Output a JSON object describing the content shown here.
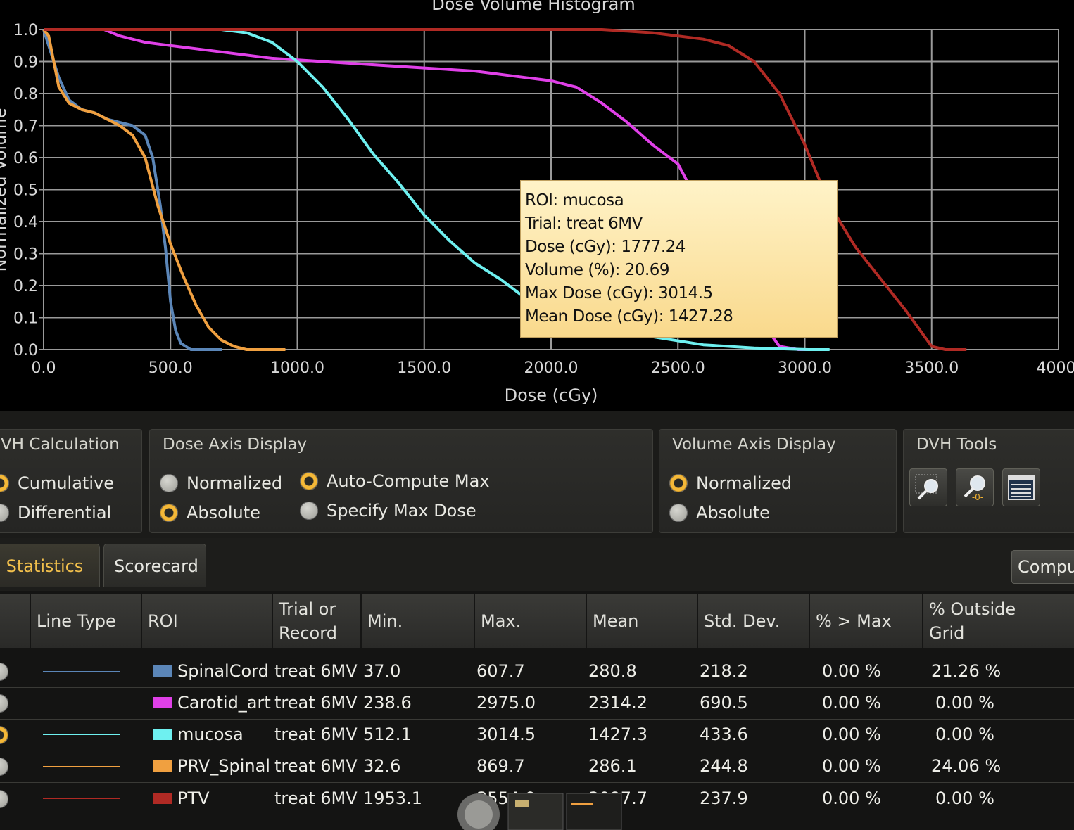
{
  "chart": {
    "title": "Dose Volume Histogram",
    "xlabel": "Dose (cGy)",
    "ylabel": "Normalized Volume",
    "xticks": [
      "0.0",
      "500.0",
      "1000.0",
      "1500.0",
      "2000.0",
      "2500.0",
      "3000.0",
      "3500.0",
      "4000."
    ],
    "yticks": [
      "0.0",
      "0.1",
      "0.2",
      "0.3",
      "0.4",
      "0.5",
      "0.6",
      "0.7",
      "0.8",
      "0.9",
      "1.0"
    ]
  },
  "chart_data": {
    "type": "line",
    "title": "Dose Volume Histogram",
    "xlabel": "Dose (cGy)",
    "ylabel": "Normalized Volume",
    "xlim": [
      0,
      4000
    ],
    "ylim": [
      0,
      1.0
    ],
    "grid": true,
    "series": [
      {
        "name": "SpinalCord",
        "color": "#5b86b8",
        "x": [
          0,
          20,
          60,
          100,
          150,
          200,
          250,
          300,
          350,
          400,
          430,
          460,
          480,
          500,
          520,
          540,
          560,
          580,
          600,
          620
        ],
        "y": [
          1.0,
          0.95,
          0.85,
          0.78,
          0.75,
          0.74,
          0.72,
          0.71,
          0.7,
          0.67,
          0.6,
          0.45,
          0.32,
          0.15,
          0.06,
          0.02,
          0.01,
          0.0,
          0.0,
          0.0
        ]
      },
      {
        "name": "Carotid_arte",
        "color": "#e040e8",
        "x": [
          238.6,
          300,
          400,
          500,
          700,
          900,
          1100,
          1300,
          1500,
          1700,
          1900,
          2000,
          2100,
          2200,
          2300,
          2400,
          2500,
          2600,
          2700,
          2800,
          2900,
          2975
        ],
        "y": [
          1.0,
          0.98,
          0.96,
          0.95,
          0.93,
          0.91,
          0.9,
          0.89,
          0.88,
          0.87,
          0.85,
          0.84,
          0.82,
          0.77,
          0.71,
          0.64,
          0.58,
          0.43,
          0.28,
          0.12,
          0.01,
          0.0
        ]
      },
      {
        "name": "mucosa",
        "color": "#6ef0f0",
        "x": [
          512.1,
          700,
          800,
          900,
          1000,
          1100,
          1200,
          1300,
          1400,
          1500,
          1600,
          1700,
          1800,
          1900,
          2000,
          2200,
          2400,
          2600,
          2800,
          3014.5
        ],
        "y": [
          1.0,
          1.0,
          0.99,
          0.96,
          0.9,
          0.82,
          0.72,
          0.61,
          0.52,
          0.42,
          0.34,
          0.27,
          0.22,
          0.16,
          0.13,
          0.07,
          0.04,
          0.015,
          0.005,
          0.0
        ]
      },
      {
        "name": "PRV_Spinal(",
        "color": "#f0a040",
        "x": [
          0,
          20,
          40,
          60,
          100,
          150,
          200,
          250,
          300,
          350,
          400,
          450,
          500,
          550,
          600,
          650,
          700,
          750,
          800,
          869.7
        ],
        "y": [
          1.0,
          0.98,
          0.9,
          0.82,
          0.77,
          0.75,
          0.74,
          0.72,
          0.7,
          0.67,
          0.6,
          0.45,
          0.33,
          0.23,
          0.14,
          0.07,
          0.03,
          0.01,
          0.0,
          0.0
        ]
      },
      {
        "name": "PTV",
        "color": "#b02a24",
        "x": [
          1953.1,
          2200,
          2400,
          2600,
          2700,
          2800,
          2900,
          3000,
          3100,
          3200,
          3300,
          3400,
          3500,
          3554
        ],
        "y": [
          1.0,
          1.0,
          0.99,
          0.97,
          0.95,
          0.9,
          0.8,
          0.64,
          0.45,
          0.32,
          0.22,
          0.12,
          0.01,
          0.0
        ]
      }
    ]
  },
  "tooltip": {
    "lines": [
      "ROI: mucosa",
      "Trial: treat 6MV",
      "Dose (cGy): 1777.24",
      "Volume (%): 20.69",
      "Max Dose (cGy): 3014.5",
      "Mean Dose (cGy): 1427.28"
    ]
  },
  "dvh_calc": {
    "title": "VH Calculation",
    "options": [
      {
        "label": "Cumulative",
        "selected": true
      },
      {
        "label": "Differential",
        "selected": false
      }
    ]
  },
  "dose_axis": {
    "title": "Dose Axis Display",
    "normalized": {
      "label": "Normalized",
      "selected": false
    },
    "absolute": {
      "label": "Absolute",
      "selected": true
    },
    "auto_max": {
      "label": "Auto-Compute Max",
      "selected": true
    },
    "specify_max": {
      "label": "Specify Max Dose",
      "selected": false
    }
  },
  "volume_axis": {
    "title": "Volume Axis Display",
    "normalized": {
      "label": "Normalized",
      "selected": true
    },
    "absolute": {
      "label": "Absolute",
      "selected": false
    }
  },
  "dvh_tools": {
    "title": "DVH Tools",
    "icons": [
      "zoom-icon",
      "zoom-reset-icon",
      "table-icon"
    ]
  },
  "tabs": {
    "roi_stats": "OI Statistics",
    "scorecard": "Scorecard",
    "compute": "Compu"
  },
  "table": {
    "headers": {
      "line_type": "Line Type",
      "roi": "ROI",
      "trial_1": "Trial or",
      "trial_2": "Record",
      "min": "Min.",
      "max": "Max.",
      "mean": "Mean",
      "std": "Std. Dev.",
      "pct_max": "% > Max",
      "outside_1": "% Outside",
      "outside_2": "Grid"
    },
    "rows": [
      {
        "selected": false,
        "color": "#5b86b8",
        "roi": "SpinalCord",
        "trial": "treat 6MV",
        "min": "37.0",
        "max": "607.7",
        "mean": "280.8",
        "std": "218.2",
        "pct_max": "0.00 %",
        "outside": "21.26 %"
      },
      {
        "selected": false,
        "color": "#e040e8",
        "roi": "Carotid_arte",
        "trial": "treat 6MV",
        "min": "238.6",
        "max": "2975.0",
        "mean": "2314.2",
        "std": "690.5",
        "pct_max": "0.00 %",
        "outside": "0.00 %"
      },
      {
        "selected": true,
        "color": "#6ef0f0",
        "roi": "mucosa",
        "trial": "treat 6MV",
        "min": "512.1",
        "max": "3014.5",
        "mean": "1427.3",
        "std": "433.6",
        "pct_max": "0.00 %",
        "outside": "0.00 %"
      },
      {
        "selected": false,
        "color": "#f0a040",
        "roi": "PRV_Spinal(",
        "trial": "treat 6MV",
        "min": "32.6",
        "max": "869.7",
        "mean": "286.1",
        "std": "244.8",
        "pct_max": "0.00 %",
        "outside": "24.06 %"
      },
      {
        "selected": false,
        "color": "#b02a24",
        "roi": "PTV",
        "trial": "treat 6MV",
        "min": "1953.1",
        "max": "3554.0",
        "mean": "3097.7",
        "std": "237.9",
        "pct_max": "0.00 %",
        "outside": "0.00 %"
      }
    ]
  }
}
